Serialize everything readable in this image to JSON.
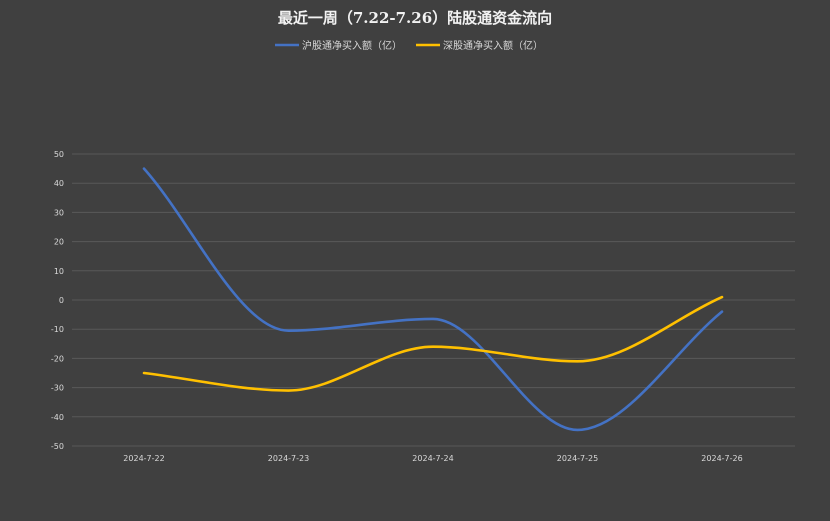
{
  "chart_data": {
    "type": "line",
    "title": "最近一周（7.22-7.26）陆股通资金流向",
    "categories": [
      "2024-7-22",
      "2024-7-23",
      "2024-7-24",
      "2024-7-25",
      "2024-7-26"
    ],
    "series": [
      {
        "name": "沪股通净买入额（亿）",
        "values": [
          45.0,
          -10.5,
          -6.5,
          -44.5,
          -4.0
        ],
        "color": "#4472C4"
      },
      {
        "name": "深股通净买入额（亿）",
        "values": [
          -25.0,
          -31.0,
          -16.0,
          -21.0,
          1.0
        ],
        "color": "#FFC000"
      }
    ],
    "ylim": [
      -50,
      50
    ],
    "yticks": [
      50,
      40,
      30,
      20,
      10,
      0,
      -10,
      -20,
      -30,
      -40,
      -50
    ],
    "grid": true,
    "legend_position": "top",
    "background_color": "#404040",
    "text_color": "#D9D9D9",
    "grid_color": "#595959"
  }
}
